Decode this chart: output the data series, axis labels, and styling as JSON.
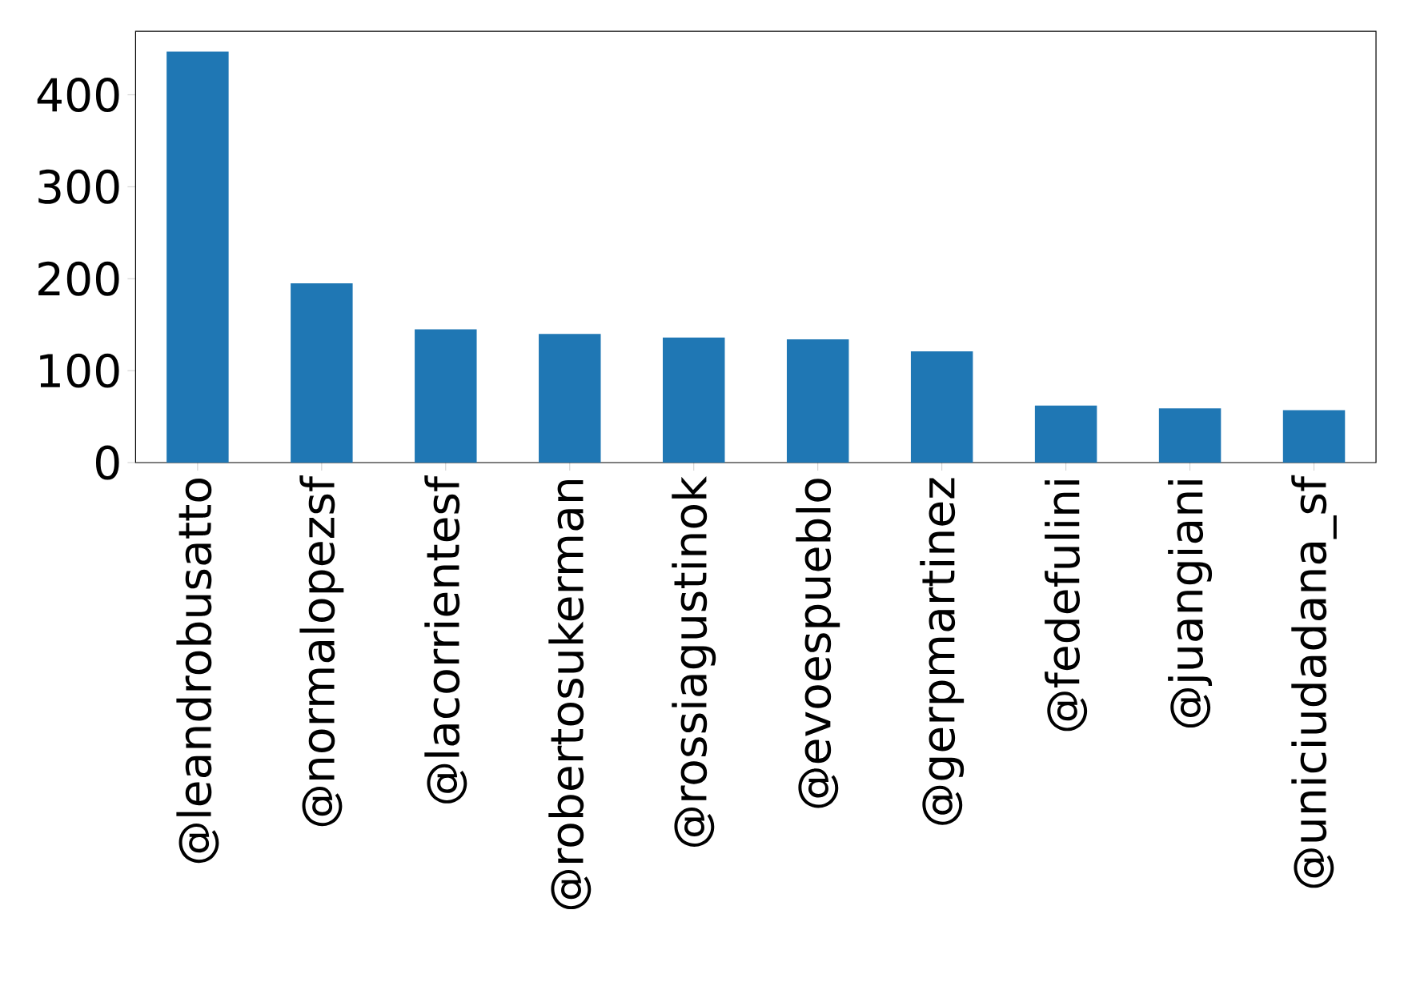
{
  "chart_data": {
    "type": "bar",
    "categories": [
      "@leandrobusatto",
      "@normalopezsf",
      "@lacorrientesf",
      "@robertosukerman",
      "@rossiagustinok",
      "@evoespueblo",
      "@gerpmartinez",
      "@fedefulini",
      "@juangiani",
      "@uniciudadana_sf"
    ],
    "values": [
      447,
      195,
      145,
      140,
      136,
      134,
      121,
      62,
      59,
      57
    ],
    "color": "#1f77b4",
    "ylim": [
      0,
      469
    ],
    "yticks": [
      0,
      100,
      200,
      300,
      400
    ]
  }
}
